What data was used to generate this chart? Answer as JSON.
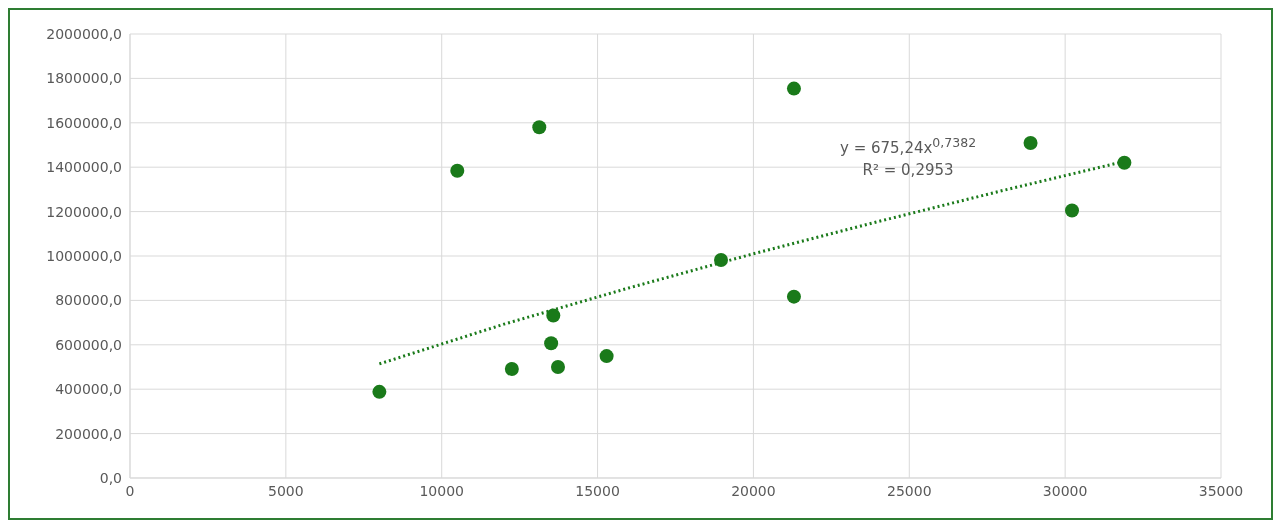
{
  "chart_data": {
    "type": "scatter",
    "series": [
      {
        "type": "scatter",
        "color": "#1a7a1a",
        "marker": "circle",
        "x": [
          8000,
          10500,
          13130,
          12250,
          13580,
          13510,
          13730,
          15290,
          18960,
          21300,
          21300,
          28890,
          30220,
          31900
        ],
        "values": [
          388000,
          1384000,
          1580000,
          491000,
          732000,
          607000,
          500000,
          549000,
          982000,
          1754000,
          817000,
          1509000,
          1205000,
          1420000
        ]
      },
      {
        "type": "line",
        "color": "#1a7a1a",
        "line_style": "dotted",
        "marker": "none",
        "x": [
          8000,
          12000,
          16000,
          20000,
          24000,
          28000,
          31900
        ],
        "values": [
          514000,
          693000,
          856000,
          1010000,
          1155000,
          1295000,
          1426000
        ]
      }
    ],
    "xlim": [
      0,
      35000
    ],
    "xticks": [
      0,
      5000,
      10000,
      15000,
      20000,
      25000,
      30000,
      35000
    ],
    "ylim": [
      0,
      2000000
    ],
    "yticks": [
      {
        "value": 0,
        "label": "0,0"
      },
      {
        "value": 200000,
        "label": "200000,0"
      },
      {
        "value": 400000,
        "label": "400000,0"
      },
      {
        "value": 600000,
        "label": "600000,0"
      },
      {
        "value": 800000,
        "label": "800000,0"
      },
      {
        "value": 1000000,
        "label": "1000000,0"
      },
      {
        "value": 1200000,
        "label": "1200000,0"
      },
      {
        "value": 1400000,
        "label": "1400000,0"
      },
      {
        "value": 1600000,
        "label": "1600000,0"
      },
      {
        "value": 1800000,
        "label": "1800000,0"
      },
      {
        "value": 2000000,
        "label": "2000000,0"
      }
    ],
    "grid": true,
    "annotations": [
      "y = 675,24x$^{0,7382}$",
      "R² = 0,2953"
    ]
  }
}
